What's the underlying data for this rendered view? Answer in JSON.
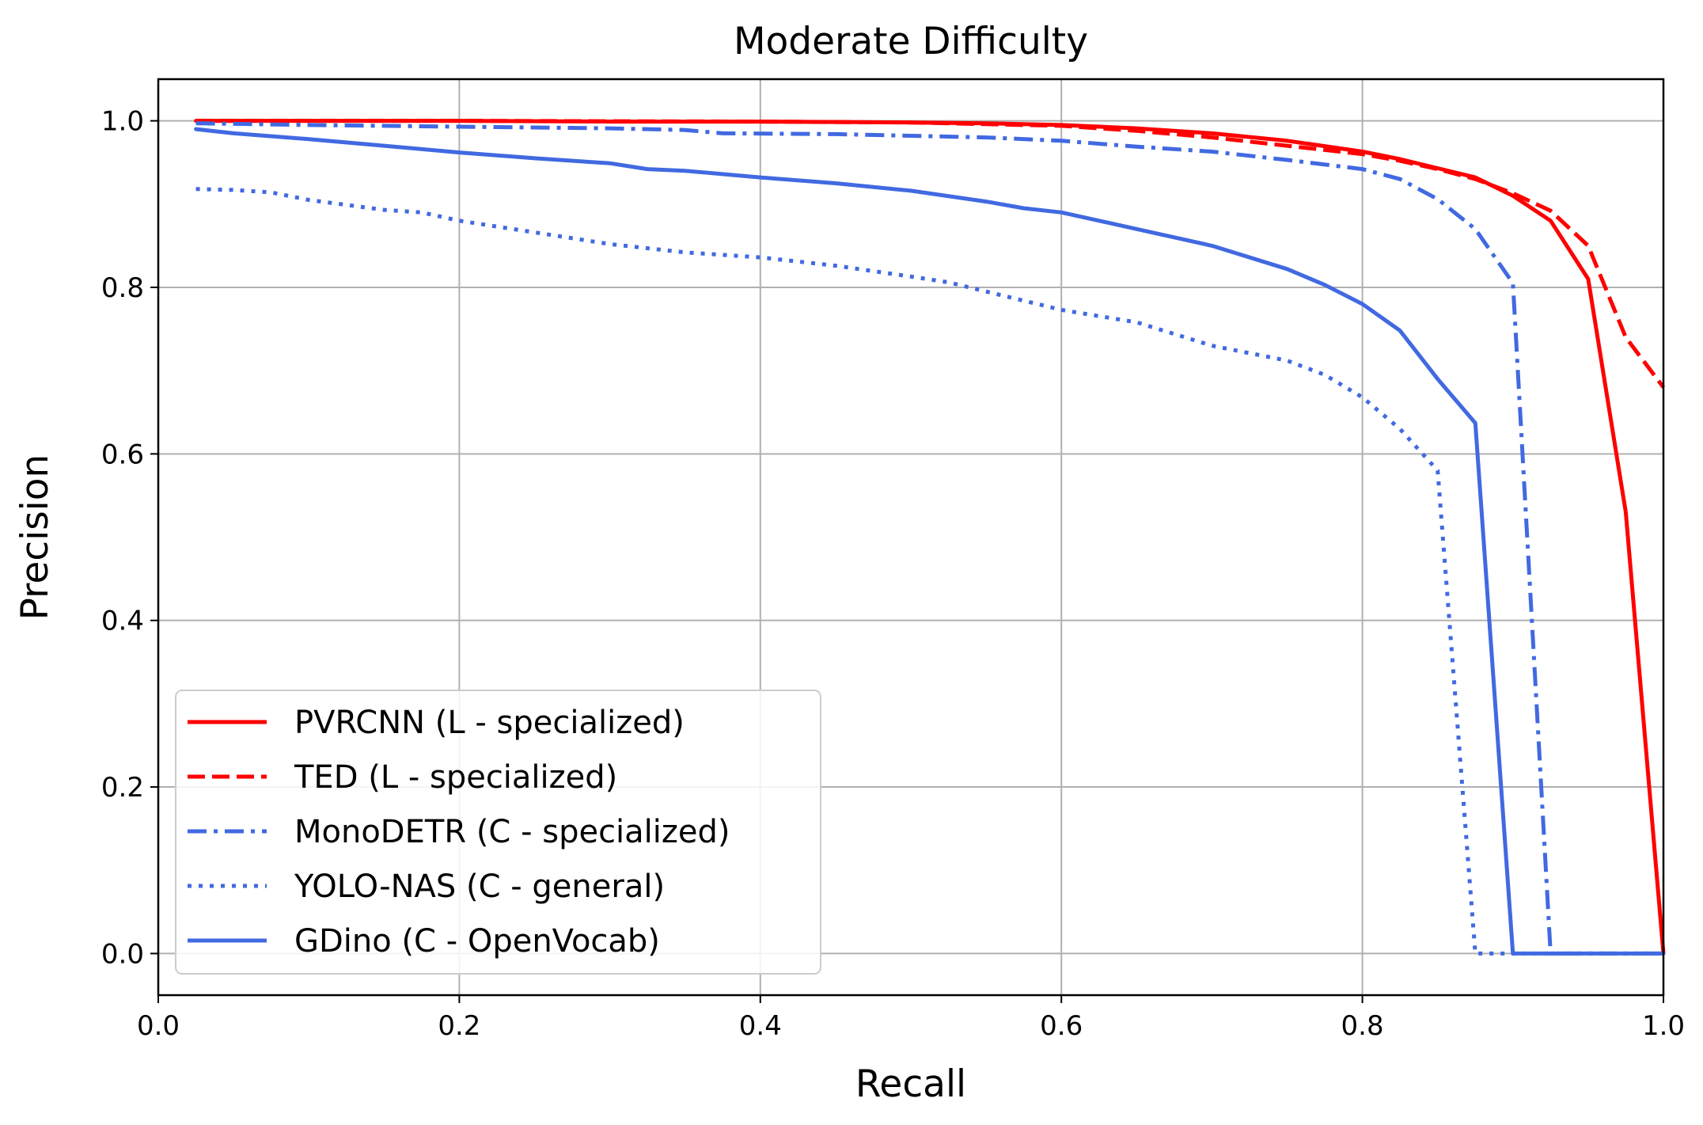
{
  "chart_data": {
    "type": "line",
    "title": "Moderate Difficulty",
    "xlabel": "Recall",
    "ylabel": "Precision",
    "xlim": [
      0.0,
      1.0
    ],
    "ylim": [
      -0.05,
      1.05
    ],
    "grid": true,
    "legend_position": "lower-left",
    "x_ticks": [
      0.0,
      0.2,
      0.4,
      0.6,
      0.8,
      1.0
    ],
    "x_tick_labels": [
      "0.0",
      "0.2",
      "0.4",
      "0.6",
      "0.8",
      "1.0"
    ],
    "y_ticks": [
      0.0,
      0.2,
      0.4,
      0.6,
      0.8,
      1.0
    ],
    "y_tick_labels": [
      "0.0",
      "0.2",
      "0.4",
      "0.6",
      "0.8",
      "1.0"
    ],
    "series": [
      {
        "name": "PVRCNN (L - specialized)",
        "color": "#ff0000",
        "linestyle": "solid",
        "x": [
          0.025,
          0.1,
          0.2,
          0.3,
          0.4,
          0.5,
          0.55,
          0.6,
          0.65,
          0.7,
          0.75,
          0.8,
          0.825,
          0.85,
          0.875,
          0.9,
          0.925,
          0.95,
          0.975,
          1.0
        ],
        "y": [
          1.0,
          1.0,
          1.0,
          0.999,
          0.999,
          0.998,
          0.997,
          0.995,
          0.991,
          0.985,
          0.976,
          0.963,
          0.954,
          0.943,
          0.932,
          0.91,
          0.88,
          0.81,
          0.53,
          0.0
        ]
      },
      {
        "name": "TED (L - specialized)",
        "color": "#ff0000",
        "linestyle": "dashed",
        "x": [
          0.025,
          0.2,
          0.4,
          0.5,
          0.6,
          0.65,
          0.7,
          0.75,
          0.8,
          0.825,
          0.85,
          0.875,
          0.9,
          0.925,
          0.95,
          0.975,
          1.0
        ],
        "y": [
          1.0,
          1.0,
          0.999,
          0.998,
          0.994,
          0.988,
          0.98,
          0.97,
          0.96,
          0.952,
          0.942,
          0.93,
          0.913,
          0.892,
          0.85,
          0.74,
          0.68
        ]
      },
      {
        "name": "MonoDETR (C - specialized)",
        "color": "#4169e1",
        "linestyle": "dashdot",
        "x": [
          0.025,
          0.1,
          0.2,
          0.3,
          0.35,
          0.375,
          0.45,
          0.5,
          0.55,
          0.6,
          0.65,
          0.7,
          0.75,
          0.8,
          0.825,
          0.85,
          0.875,
          0.9,
          0.925,
          0.95,
          1.0
        ],
        "y": [
          0.997,
          0.995,
          0.993,
          0.991,
          0.989,
          0.985,
          0.984,
          0.982,
          0.98,
          0.976,
          0.969,
          0.963,
          0.953,
          0.942,
          0.93,
          0.906,
          0.87,
          0.805,
          0.0,
          0.0,
          0.0
        ]
      },
      {
        "name": "YOLO-NAS (C - general)",
        "color": "#4169e1",
        "linestyle": "dotted",
        "x": [
          0.025,
          0.05,
          0.075,
          0.1,
          0.15,
          0.175,
          0.2,
          0.25,
          0.3,
          0.35,
          0.4,
          0.45,
          0.5,
          0.525,
          0.55,
          0.6,
          0.65,
          0.7,
          0.75,
          0.775,
          0.8,
          0.825,
          0.85,
          0.875,
          0.9,
          1.0
        ],
        "y": [
          0.918,
          0.917,
          0.914,
          0.905,
          0.893,
          0.89,
          0.88,
          0.866,
          0.852,
          0.842,
          0.836,
          0.826,
          0.813,
          0.806,
          0.795,
          0.773,
          0.758,
          0.73,
          0.712,
          0.695,
          0.668,
          0.63,
          0.58,
          0.0,
          0.0,
          0.0
        ]
      },
      {
        "name": "GDino (C - OpenVocab)",
        "color": "#4169e1",
        "linestyle": "solid",
        "x": [
          0.025,
          0.05,
          0.1,
          0.15,
          0.2,
          0.25,
          0.3,
          0.325,
          0.35,
          0.4,
          0.45,
          0.5,
          0.55,
          0.575,
          0.6,
          0.65,
          0.7,
          0.75,
          0.775,
          0.8,
          0.825,
          0.85,
          0.875,
          0.9,
          1.0
        ],
        "y": [
          0.99,
          0.985,
          0.978,
          0.97,
          0.962,
          0.955,
          0.949,
          0.942,
          0.94,
          0.932,
          0.925,
          0.916,
          0.903,
          0.895,
          0.89,
          0.87,
          0.85,
          0.822,
          0.803,
          0.78,
          0.748,
          0.69,
          0.637,
          0.0,
          0.0
        ]
      }
    ]
  }
}
